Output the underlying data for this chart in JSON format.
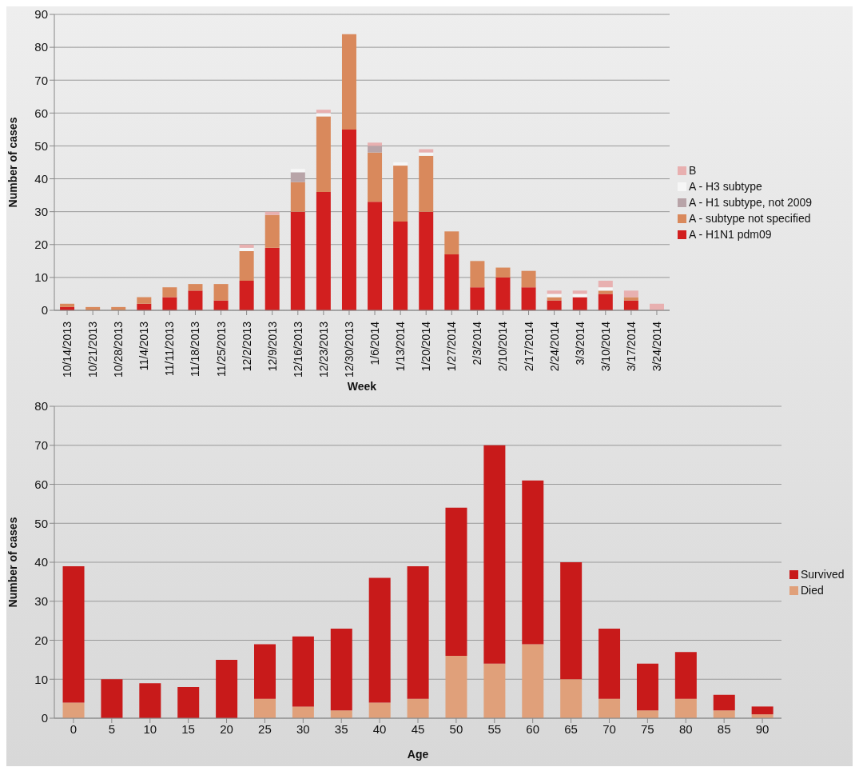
{
  "chart_data": [
    {
      "type": "bar",
      "xlabel": "Week",
      "ylabel": "Number of cases",
      "stacked": true,
      "grid": "y",
      "legend": "right",
      "categories": [
        "10/14/2013",
        "10/21/2013",
        "10/28/2013",
        "11/4/2013",
        "11/11/2013",
        "11/18/2013",
        "11/25/2013",
        "12/2/2013",
        "12/9/2013",
        "12/16/2013",
        "12/23/2013",
        "12/30/2013",
        "1/6/2014",
        "1/13/2014",
        "1/20/2014",
        "1/27/2014",
        "2/3/2014",
        "2/10/2014",
        "2/17/2014",
        "2/24/2014",
        "3/3/2014",
        "3/10/2014",
        "3/17/2014",
        "3/24/2014"
      ],
      "ylim": [
        0,
        90
      ],
      "yticks": [
        0,
        10,
        20,
        30,
        40,
        50,
        60,
        70,
        80,
        90
      ],
      "series": [
        {
          "name": "A - H1N1 pdm09",
          "color": "#d21f1f",
          "values": [
            1,
            0,
            0,
            2,
            4,
            6,
            3,
            9,
            19,
            30,
            36,
            55,
            33,
            27,
            30,
            17,
            7,
            10,
            7,
            3,
            4,
            5,
            3,
            0
          ]
        },
        {
          "name": "A - subtype not specified",
          "color": "#d9895c",
          "values": [
            1,
            1,
            1,
            2,
            3,
            2,
            5,
            9,
            10,
            9,
            23,
            29,
            15,
            17,
            17,
            7,
            8,
            3,
            5,
            1,
            0,
            1,
            1,
            0
          ]
        },
        {
          "name": "A - H1 subtype, not 2009",
          "color": "#b8a4a8",
          "values": [
            0,
            0,
            0,
            0,
            0,
            0,
            0,
            0,
            0,
            3,
            0,
            0,
            2,
            0,
            0,
            0,
            0,
            0,
            0,
            0,
            0,
            0,
            0,
            0
          ]
        },
        {
          "name": "A - H3 subtype",
          "color": "#f6f6f6",
          "values": [
            0,
            0,
            0,
            0,
            0,
            0,
            0,
            1,
            0,
            1,
            1,
            0,
            0,
            1,
            1,
            0,
            0,
            0,
            0,
            1,
            1,
            1,
            0,
            0
          ]
        },
        {
          "name": "B",
          "color": "#e8b0b0",
          "values": [
            0,
            0,
            0,
            0,
            0,
            0,
            0,
            1,
            1,
            0,
            1,
            0,
            1,
            0,
            1,
            0,
            0,
            0,
            0,
            1,
            1,
            2,
            2,
            2
          ]
        }
      ]
    },
    {
      "type": "bar",
      "xlabel": "Age",
      "ylabel": "Number of cases",
      "stacked": true,
      "grid": "y",
      "legend": "right",
      "categories": [
        "0",
        "5",
        "10",
        "15",
        "20",
        "25",
        "30",
        "35",
        "40",
        "45",
        "50",
        "55",
        "60",
        "65",
        "70",
        "75",
        "80",
        "85",
        "90"
      ],
      "ylim": [
        0,
        80
      ],
      "yticks": [
        0,
        10,
        20,
        30,
        40,
        50,
        60,
        70,
        80
      ],
      "series": [
        {
          "name": "Died",
          "color": "#e0a07a",
          "values": [
            4,
            0,
            0,
            0,
            0,
            5,
            3,
            2,
            4,
            5,
            16,
            14,
            19,
            10,
            5,
            2,
            5,
            2,
            1
          ]
        },
        {
          "name": "Survived",
          "color": "#c81a1a",
          "values": [
            35,
            10,
            9,
            8,
            15,
            14,
            18,
            21,
            32,
            34,
            38,
            56,
            42,
            30,
            18,
            12,
            12,
            4,
            2
          ]
        }
      ]
    }
  ]
}
